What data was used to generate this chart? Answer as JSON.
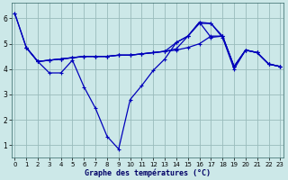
{
  "title": "Graphe des températures (°C)",
  "bg_color": "#cce8e8",
  "line_color": "#0000bb",
  "grid_color": "#99bbbb",
  "xlim": [
    -0.3,
    23.3
  ],
  "ylim": [
    0.5,
    6.6
  ],
  "yticks": [
    1,
    2,
    3,
    4,
    5,
    6
  ],
  "xticks": [
    0,
    1,
    2,
    3,
    4,
    5,
    6,
    7,
    8,
    9,
    10,
    11,
    12,
    13,
    14,
    15,
    16,
    17,
    18,
    19,
    20,
    21,
    22,
    23
  ],
  "line1_x": [
    0,
    1,
    2,
    3,
    4,
    5,
    6,
    7,
    8,
    9,
    10,
    11,
    12,
    13,
    14,
    15,
    16,
    17,
    18,
    19,
    20,
    21,
    22,
    23
  ],
  "line1_y": [
    6.2,
    4.85,
    4.3,
    3.85,
    3.85,
    4.35,
    3.3,
    2.45,
    1.35,
    0.85,
    2.8,
    3.35,
    3.95,
    4.4,
    5.05,
    5.3,
    5.8,
    5.8,
    5.25,
    4.0,
    4.75,
    4.65,
    4.2,
    4.1
  ],
  "line2_x": [
    0,
    1,
    2,
    3,
    4,
    5,
    6,
    7,
    8,
    9,
    10,
    11,
    12,
    13,
    14,
    15,
    16,
    17,
    18,
    19,
    20,
    21,
    22,
    23
  ],
  "line2_y": [
    6.2,
    4.85,
    4.3,
    4.35,
    4.4,
    4.45,
    4.5,
    4.5,
    4.5,
    4.55,
    4.55,
    4.6,
    4.65,
    4.7,
    4.75,
    4.85,
    5.0,
    5.3,
    5.3,
    4.1,
    4.75,
    4.65,
    4.2,
    4.1
  ],
  "line3_x": [
    1,
    2,
    3,
    4,
    5,
    6,
    7,
    8,
    9,
    10,
    11,
    12,
    13,
    14,
    15,
    16,
    17,
    18,
    19,
    20,
    21,
    22,
    23
  ],
  "line3_y": [
    4.85,
    4.3,
    4.35,
    4.4,
    4.45,
    4.5,
    4.5,
    4.5,
    4.55,
    4.55,
    4.6,
    4.65,
    4.7,
    4.8,
    5.3,
    5.85,
    5.8,
    5.3,
    4.1,
    4.75,
    4.65,
    4.2,
    4.1
  ],
  "line4_x": [
    1,
    2,
    3,
    4,
    5,
    6,
    7,
    8,
    9,
    10,
    11,
    12,
    13,
    14,
    15,
    16,
    17,
    18,
    19,
    20,
    21,
    22,
    23
  ],
  "line4_y": [
    4.85,
    4.3,
    4.35,
    4.4,
    4.45,
    4.5,
    4.5,
    4.5,
    4.55,
    4.55,
    4.6,
    4.65,
    4.7,
    5.05,
    5.3,
    5.85,
    5.25,
    5.3,
    4.1,
    4.75,
    4.65,
    4.2,
    4.1
  ],
  "marker": "+",
  "marker_size": 3.5,
  "line_width": 0.9,
  "xlabel_fontsize": 6.0,
  "tick_fontsize": 5.0
}
